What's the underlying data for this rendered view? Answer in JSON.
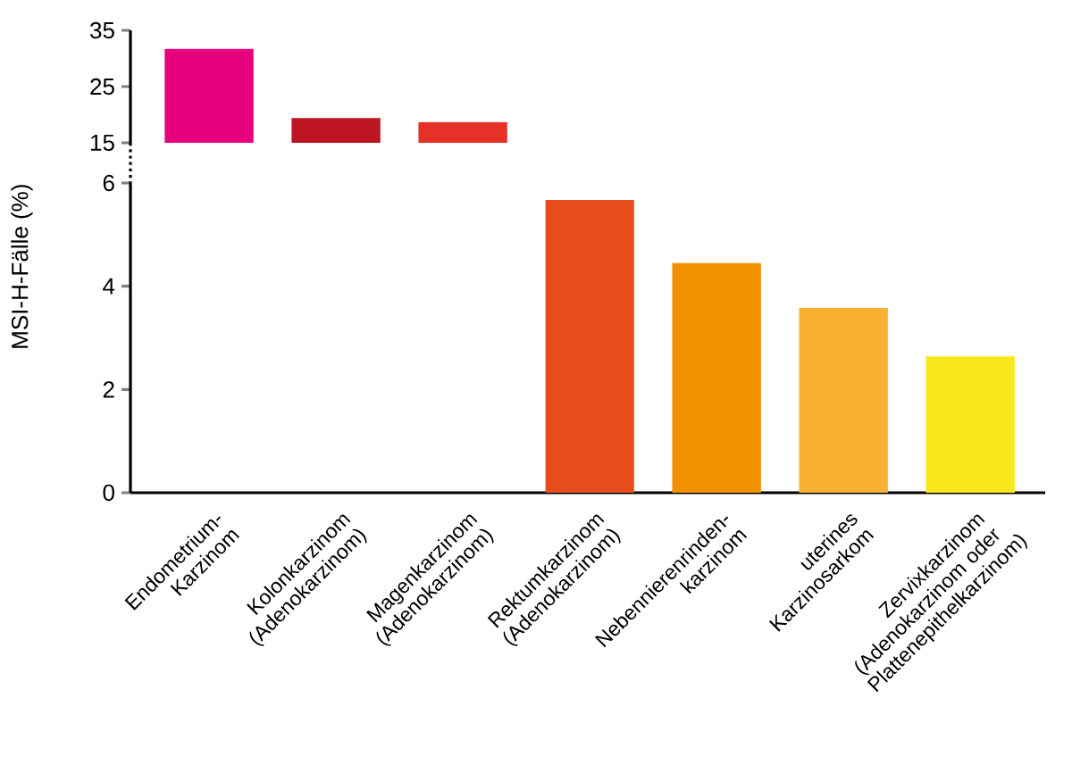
{
  "chart_data": [
    {
      "type": "bar",
      "categories": [
        null,
        null,
        null
      ],
      "values": [
        31.7,
        19.4,
        18.7
      ],
      "colors": [
        "#e6007e",
        "#bd1622",
        "#e53128"
      ],
      "ylim": [
        15,
        35
      ],
      "yticks": [
        15,
        25,
        35
      ],
      "tick_labels": "y"
    },
    {
      "type": "bar",
      "ylabel": "MSI-H-Fälle (%)",
      "categories": [
        "Endometrium-Karzinom",
        "Kolonkarzinom (Adenokarzinom)",
        "Magenkarzinom (Adenokarzinom)",
        "Rektumkarzinom (Adenokarzinom)",
        "Nebennierenrinden-karzinom",
        "uterines Karzinosarkom",
        "Zervixkarzinom (Adenokarzinom oder Plattenepithelkarzinom)"
      ],
      "values": [
        null,
        null,
        null,
        5.67,
        4.45,
        3.58,
        2.64
      ],
      "colors": [
        "#e6007e",
        "#bd1622",
        "#e53128",
        "#e84e1b",
        "#f29100",
        "#f8b133",
        "#f8e71c"
      ],
      "ylim": [
        0,
        6
      ],
      "yticks": [
        0,
        2,
        4,
        6
      ]
    }
  ]
}
